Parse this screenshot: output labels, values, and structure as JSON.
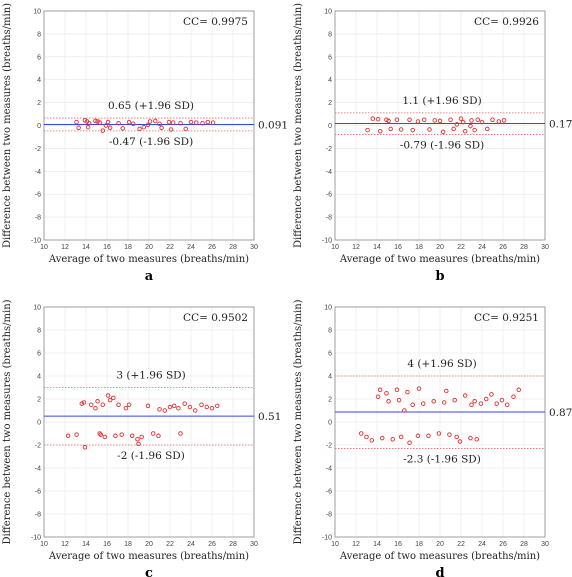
{
  "chart_data": [
    {
      "type": "scatter",
      "panel_label": "a",
      "cc_text": "CC= 0.9975",
      "xlabel": "Average of two measures (breaths/min)",
      "ylabel": "Difference between two measures (breaths/min)",
      "xlim": [
        10,
        30
      ],
      "ylim": [
        -10,
        10
      ],
      "xticks": [
        10,
        12,
        14,
        16,
        18,
        20,
        22,
        24,
        26,
        28,
        30
      ],
      "yticks": [
        -10,
        -8,
        -6,
        -4,
        -2,
        0,
        2,
        4,
        6,
        8,
        10
      ],
      "mean": 0.091,
      "mean_label": "0.091",
      "upper": 0.65,
      "upper_label": "0.65 (+1.96 SD)",
      "lower": -0.47,
      "lower_label": "-0.47 (-1.96 SD)",
      "grid": true,
      "colors": {
        "points": "#e03030",
        "mean_line": "#3344ee",
        "limit_lines": "#ee6666"
      },
      "points": [
        [
          13.1,
          0.3
        ],
        [
          13.3,
          -0.2
        ],
        [
          13.9,
          0.45
        ],
        [
          14.1,
          0.35
        ],
        [
          14.3,
          0.2
        ],
        [
          14.2,
          -0.15
        ],
        [
          14.9,
          0.4
        ],
        [
          15.1,
          0.35
        ],
        [
          15.3,
          0.25
        ],
        [
          15.6,
          -0.45
        ],
        [
          16.1,
          0.3
        ],
        [
          16.3,
          -0.2
        ],
        [
          17.1,
          0.2
        ],
        [
          17.5,
          -0.25
        ],
        [
          18.1,
          0.3
        ],
        [
          18.5,
          0.15
        ],
        [
          19.1,
          -0.3
        ],
        [
          19.5,
          -0.15
        ],
        [
          20.1,
          0.35
        ],
        [
          20.6,
          0.4
        ],
        [
          21.0,
          0.15
        ],
        [
          21.2,
          -0.2
        ],
        [
          21.9,
          0.3
        ],
        [
          22.1,
          -0.35
        ],
        [
          22.3,
          0.25
        ],
        [
          23.0,
          0.2
        ],
        [
          23.5,
          -0.3
        ],
        [
          24.0,
          0.3
        ],
        [
          24.5,
          0.25
        ],
        [
          25.1,
          0.2
        ],
        [
          25.6,
          0.3
        ],
        [
          26.1,
          0.25
        ],
        [
          15.9,
          0.0
        ],
        [
          19.9,
          0.05
        ]
      ]
    },
    {
      "type": "scatter",
      "panel_label": "b",
      "cc_text": "CC= 0.9926",
      "xlabel": "Average of two measures (breaths/min)",
      "ylabel": "Difference between two measures (breaths/min)",
      "xlim": [
        10,
        30
      ],
      "ylim": [
        -10,
        10
      ],
      "xticks": [
        10,
        12,
        14,
        16,
        18,
        20,
        22,
        24,
        26,
        28,
        30
      ],
      "yticks": [
        -10,
        -8,
        -6,
        -4,
        -2,
        0,
        2,
        4,
        6,
        8,
        10
      ],
      "mean": 0.17,
      "mean_label": "0.17",
      "upper": 1.1,
      "upper_label": "1.1 (+1.96 SD)",
      "lower": -0.79,
      "lower_label": "-0.79 (-1.96 SD)",
      "grid": true,
      "colors": {
        "points": "#e03030",
        "mean_line": "#3344ee",
        "limit_lines": "#ee6666"
      },
      "points": [
        [
          13.1,
          -0.4
        ],
        [
          13.6,
          0.6
        ],
        [
          14.1,
          0.55
        ],
        [
          14.3,
          -0.5
        ],
        [
          14.9,
          0.5
        ],
        [
          15.1,
          0.4
        ],
        [
          15.3,
          -0.3
        ],
        [
          15.9,
          0.5
        ],
        [
          16.3,
          -0.35
        ],
        [
          17.1,
          0.5
        ],
        [
          17.4,
          -0.4
        ],
        [
          17.9,
          0.35
        ],
        [
          18.5,
          0.5
        ],
        [
          19.0,
          -0.35
        ],
        [
          19.5,
          0.45
        ],
        [
          20.0,
          0.4
        ],
        [
          20.3,
          -0.55
        ],
        [
          21.0,
          0.5
        ],
        [
          21.3,
          -0.3
        ],
        [
          22.0,
          0.6
        ],
        [
          22.2,
          0.3
        ],
        [
          22.4,
          -0.5
        ],
        [
          23.0,
          0.45
        ],
        [
          23.3,
          -0.4
        ],
        [
          23.6,
          0.5
        ],
        [
          24.0,
          0.3
        ],
        [
          24.5,
          -0.3
        ],
        [
          25.0,
          0.5
        ],
        [
          25.6,
          0.35
        ],
        [
          26.1,
          0.45
        ],
        [
          21.6,
          0.1
        ],
        [
          22.9,
          -0.05
        ]
      ]
    },
    {
      "type": "scatter",
      "panel_label": "c",
      "cc_text": "CC= 0.9502",
      "xlabel": "Average of two measures (breaths/min)",
      "ylabel": "Difference between two measures (breaths/min)",
      "xlim": [
        10,
        30
      ],
      "ylim": [
        -10,
        10
      ],
      "xticks": [
        10,
        12,
        14,
        16,
        18,
        20,
        22,
        24,
        26,
        28,
        30
      ],
      "yticks": [
        -10,
        -8,
        -6,
        -4,
        -2,
        0,
        2,
        4,
        6,
        8,
        10
      ],
      "mean": 0.51,
      "mean_label": "0.51",
      "upper": 3,
      "upper_label": "3 (+1.96 SD)",
      "lower": -2,
      "lower_label": "-2 (-1.96 SD)",
      "grid": true,
      "colors": {
        "points": "#e03030",
        "mean_line": "#3344ee",
        "limit_lines": "#ee6666"
      },
      "points": [
        [
          12.3,
          -1.2
        ],
        [
          13.1,
          -1.1
        ],
        [
          13.6,
          1.6
        ],
        [
          13.8,
          1.7
        ],
        [
          13.9,
          -2.2
        ],
        [
          14.5,
          1.5
        ],
        [
          14.9,
          1.2
        ],
        [
          15.1,
          1.8
        ],
        [
          15.3,
          -1.0
        ],
        [
          15.6,
          1.5
        ],
        [
          15.8,
          -1.3
        ],
        [
          16.1,
          2.3
        ],
        [
          16.3,
          1.9
        ],
        [
          16.6,
          2.1
        ],
        [
          16.8,
          -1.2
        ],
        [
          17.1,
          1.5
        ],
        [
          17.4,
          -1.1
        ],
        [
          17.8,
          1.2
        ],
        [
          18.1,
          1.5
        ],
        [
          18.4,
          -1.2
        ],
        [
          18.9,
          -1.5
        ],
        [
          19.0,
          -1.9
        ],
        [
          19.3,
          -1.3
        ],
        [
          19.9,
          1.4
        ],
        [
          20.4,
          -1.0
        ],
        [
          20.9,
          -1.2
        ],
        [
          21.5,
          1.0
        ],
        [
          22.0,
          1.3
        ],
        [
          22.4,
          1.4
        ],
        [
          22.8,
          1.2
        ],
        [
          23.0,
          -1.0
        ],
        [
          23.4,
          1.6
        ],
        [
          23.9,
          1.3
        ],
        [
          24.4,
          1.0
        ],
        [
          25.0,
          1.5
        ],
        [
          25.5,
          1.3
        ],
        [
          26.0,
          1.2
        ],
        [
          26.5,
          1.4
        ],
        [
          21.0,
          1.1
        ],
        [
          15.4,
          -1.1
        ]
      ]
    },
    {
      "type": "scatter",
      "panel_label": "d",
      "cc_text": "CC= 0.9251",
      "xlabel": "Average of two measures (breaths/min)",
      "ylabel": "Difference between two measures (breaths/min)",
      "xlim": [
        10,
        30
      ],
      "ylim": [
        -10,
        10
      ],
      "xticks": [
        10,
        12,
        14,
        16,
        18,
        20,
        22,
        24,
        26,
        28,
        30
      ],
      "yticks": [
        -10,
        -8,
        -6,
        -4,
        -2,
        0,
        2,
        4,
        6,
        8,
        10
      ],
      "mean": 0.87,
      "mean_label": "0.87",
      "upper": 4,
      "upper_label": "4 (+1.96 SD)",
      "lower": -2.3,
      "lower_label": "-2.3 (-1.96 SD)",
      "grid": true,
      "colors": {
        "points": "#e03030",
        "mean_line": "#3344ee",
        "limit_lines": "#ee6666"
      },
      "points": [
        [
          12.5,
          -1.0
        ],
        [
          13.0,
          -1.3
        ],
        [
          13.5,
          -1.6
        ],
        [
          14.1,
          2.2
        ],
        [
          14.3,
          2.8
        ],
        [
          14.5,
          -1.4
        ],
        [
          14.9,
          2.5
        ],
        [
          15.1,
          1.8
        ],
        [
          15.5,
          -1.5
        ],
        [
          15.9,
          2.8
        ],
        [
          16.1,
          1.9
        ],
        [
          16.3,
          -1.3
        ],
        [
          16.6,
          1.0
        ],
        [
          16.9,
          2.6
        ],
        [
          17.1,
          -1.8
        ],
        [
          17.4,
          1.5
        ],
        [
          17.9,
          -1.2
        ],
        [
          18.4,
          1.6
        ],
        [
          18.9,
          -1.2
        ],
        [
          19.4,
          1.8
        ],
        [
          19.9,
          -1.0
        ],
        [
          20.4,
          1.7
        ],
        [
          20.9,
          -1.1
        ],
        [
          21.4,
          1.9
        ],
        [
          21.6,
          -1.3
        ],
        [
          21.9,
          -1.7
        ],
        [
          22.4,
          2.3
        ],
        [
          22.9,
          -1.4
        ],
        [
          23.0,
          1.5
        ],
        [
          23.3,
          1.8
        ],
        [
          23.5,
          -1.5
        ],
        [
          23.9,
          1.6
        ],
        [
          24.4,
          2.0
        ],
        [
          24.9,
          2.4
        ],
        [
          25.4,
          1.6
        ],
        [
          25.9,
          1.9
        ],
        [
          26.4,
          1.5
        ],
        [
          27.0,
          2.2
        ],
        [
          27.5,
          2.8
        ],
        [
          20.6,
          2.7
        ],
        [
          18.0,
          2.9
        ]
      ]
    }
  ]
}
